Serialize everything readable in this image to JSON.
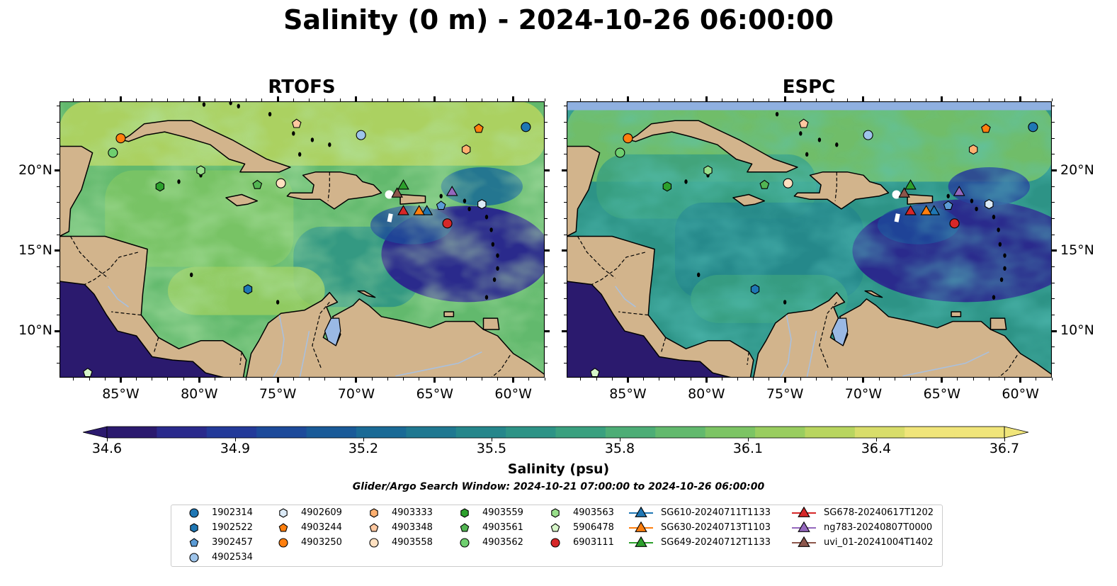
{
  "title": "Salinity (0 m) - 2024-10-26 06:00:00",
  "panels": [
    {
      "title": "RTOFS",
      "model": "rtofs"
    },
    {
      "title": "ESPC",
      "model": "espc"
    }
  ],
  "lon_ticks": [
    {
      "value": -85,
      "label": "85°W"
    },
    {
      "value": -80,
      "label": "80°W"
    },
    {
      "value": -75,
      "label": "75°W"
    },
    {
      "value": -70,
      "label": "70°W"
    },
    {
      "value": -65,
      "label": "65°W"
    },
    {
      "value": -60,
      "label": "60°W"
    }
  ],
  "lat_ticks": [
    {
      "value": 20,
      "label": "20°N"
    },
    {
      "value": 15,
      "label": "15°N"
    },
    {
      "value": 10,
      "label": "10°N"
    }
  ],
  "colorbar": {
    "label": "Salinity (psu)",
    "min": 34.6,
    "max": 36.7,
    "ticks": [
      "34.6",
      "34.9",
      "35.2",
      "35.5",
      "35.8",
      "36.1",
      "36.4",
      "36.7"
    ],
    "colors": [
      "#2b1a6e",
      "#2a2a8c",
      "#233a99",
      "#1d4a9a",
      "#195a98",
      "#1a6a96",
      "#1f7891",
      "#25868b",
      "#2d9386",
      "#3aa07f",
      "#4dad76",
      "#62b96d",
      "#7cc464",
      "#99cd5f",
      "#b8d55f",
      "#d8dd6a",
      "#f0e57a"
    ]
  },
  "search_window": "Glider/Argo Search Window: 2024-10-21 07:00:00 to 2024-10-26 06:00:00",
  "legend": [
    {
      "label": "1902314",
      "marker": "circle",
      "color": "#1f77b4",
      "lon": -59.2,
      "lat": 22.7
    },
    {
      "label": "1902522",
      "marker": "hexagon",
      "color": "#1f77b4",
      "lon": -76.9,
      "lat": 12.6
    },
    {
      "label": "3902457",
      "marker": "pentagon",
      "color": "#5b9bd5",
      "lon": -64.6,
      "lat": 17.8
    },
    {
      "label": "4902534",
      "marker": "circle",
      "color": "#9ec4ea",
      "lon": -69.7,
      "lat": 22.2
    },
    {
      "label": "4902609",
      "marker": "hexagon",
      "color": "#dbeaf7",
      "lon": -62.0,
      "lat": 17.9
    },
    {
      "label": "4903244",
      "marker": "pentagon",
      "color": "#ff7f0e",
      "lon": -62.2,
      "lat": 22.6
    },
    {
      "label": "4903250",
      "marker": "circle",
      "color": "#ff7f0e",
      "lon": -85.0,
      "lat": 22.0
    },
    {
      "label": "4903333",
      "marker": "hexagon",
      "color": "#ffb070",
      "lon": -63.0,
      "lat": 21.3
    },
    {
      "label": "4903348",
      "marker": "pentagon",
      "color": "#ffc8a0",
      "lon": -73.8,
      "lat": 22.9
    },
    {
      "label": "4903558",
      "marker": "circle",
      "color": "#ffe0c0",
      "lon": -74.8,
      "lat": 19.2
    },
    {
      "label": "4903559",
      "marker": "hexagon",
      "color": "#2ca02c",
      "lon": -82.5,
      "lat": 19.0
    },
    {
      "label": "4903561",
      "marker": "pentagon",
      "color": "#52b552",
      "lon": -76.3,
      "lat": 19.1
    },
    {
      "label": "4903562",
      "marker": "circle",
      "color": "#6fcf6f",
      "lon": -85.5,
      "lat": 21.1
    },
    {
      "label": "4903563",
      "marker": "hexagon",
      "color": "#98df8a",
      "lon": -79.9,
      "lat": 20.0
    },
    {
      "label": "5906478",
      "marker": "pentagon",
      "color": "#d6f5c8",
      "lon": -87.1,
      "lat": 7.4
    },
    {
      "label": "6903111",
      "marker": "circle",
      "color": "#d62728",
      "lon": -64.2,
      "lat": 16.7
    },
    {
      "label": "SG610-20240711T1133",
      "marker": "triangle",
      "color": "#1f77b4",
      "lon": -65.5,
      "lat": 17.5
    },
    {
      "label": "SG630-20240713T1103",
      "marker": "triangle",
      "color": "#ff7f0e",
      "lon": -66.0,
      "lat": 17.5
    },
    {
      "label": "SG649-20240712T1133",
      "marker": "triangle",
      "color": "#2ca02c",
      "lon": -67.0,
      "lat": 19.1
    },
    {
      "label": "SG678-20240617T1202",
      "marker": "triangle",
      "color": "#d62728",
      "lon": -67.0,
      "lat": 17.5
    },
    {
      "label": "ng783-20240807T0000",
      "marker": "triangle",
      "color": "#9467bd",
      "lon": -63.9,
      "lat": 18.7
    },
    {
      "label": "uvi_01-20241004T1402",
      "marker": "triangle",
      "color": "#8c564b",
      "lon": -67.4,
      "lat": 18.6
    }
  ],
  "colors": {
    "land": "#d2b48c",
    "lake": "#9ab9e4",
    "river": "#aac0dd"
  }
}
